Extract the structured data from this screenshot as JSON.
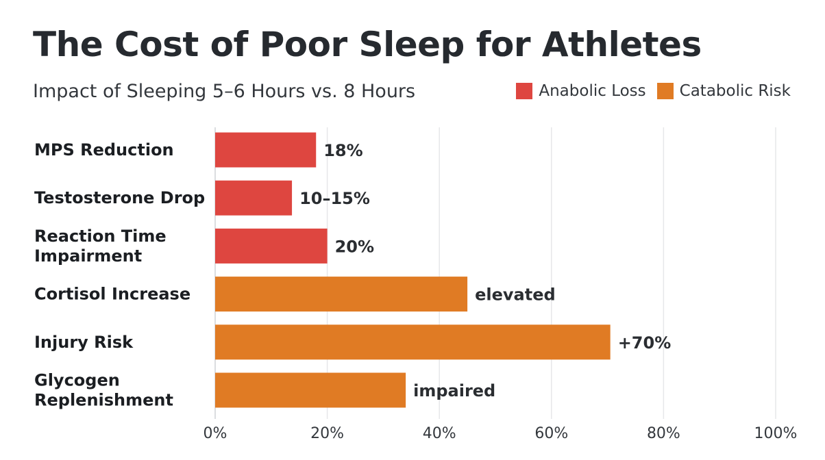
{
  "chart_data": {
    "type": "bar",
    "orientation": "horizontal",
    "title": "The Cost of Poor Sleep for Athletes",
    "subtitle": "Impact of Sleeping 5–6 Hours vs. 8 Hours",
    "xlim": [
      0,
      100
    ],
    "x_ticks": [
      "0%",
      "20%",
      "40%",
      "60%",
      "80%",
      "100%"
    ],
    "grid": "vertical",
    "legend_position": "top-right",
    "series": [
      {
        "name": "Anabolic Loss",
        "color": "#de4640"
      },
      {
        "name": "Catabolic Risk",
        "color": "#e07b24"
      }
    ],
    "bars": [
      {
        "category": [
          "MPS Reduction"
        ],
        "value": 18,
        "label": "18%",
        "series": "Anabolic Loss"
      },
      {
        "category": [
          "Testosterone Drop"
        ],
        "value": 13.7,
        "label": "10–15%",
        "series": "Anabolic Loss"
      },
      {
        "category": [
          "Reaction Time",
          "Impairment"
        ],
        "value": 20,
        "label": "20%",
        "series": "Anabolic Loss"
      },
      {
        "category": [
          "Cortisol Increase"
        ],
        "value": 45,
        "label": "elevated",
        "series": "Catabolic Risk"
      },
      {
        "category": [
          "Injury Risk"
        ],
        "value": 70.5,
        "label": "+70%",
        "series": "Catabolic Risk"
      },
      {
        "category": [
          "Glycogen",
          "Replenishment"
        ],
        "value": 34,
        "label": "impaired",
        "series": "Catabolic Risk"
      }
    ]
  }
}
